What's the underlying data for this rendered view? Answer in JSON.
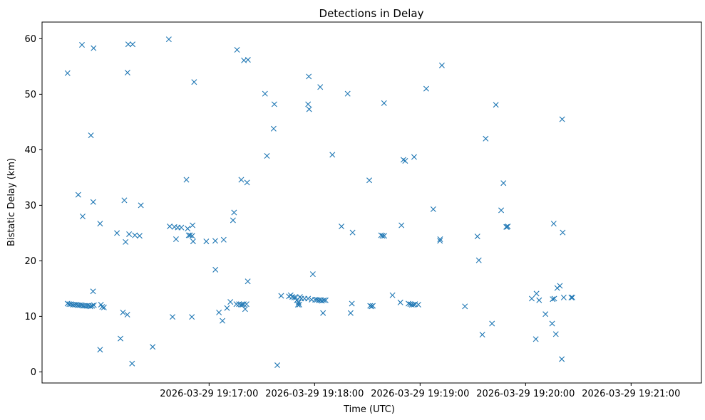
{
  "chart_data": {
    "type": "scatter",
    "title": "Detections in Delay",
    "xlabel": "Time (UTC)",
    "ylabel": "Bistatic Delay (km)",
    "x_unit": "seconds past 19:00:00 UTC, 2026-03-29",
    "xlim": [
      925,
      1300
    ],
    "ylim": [
      -2,
      63
    ],
    "x_ticks": [
      {
        "value": 1020,
        "label": "2026-03-29 19:17:00"
      },
      {
        "value": 1080,
        "label": "2026-03-29 19:18:00"
      },
      {
        "value": 1140,
        "label": "2026-03-29 19:19:00"
      },
      {
        "value": 1200,
        "label": "2026-03-29 19:20:00"
      },
      {
        "value": 1260,
        "label": "2026-03-29 19:21:00"
      }
    ],
    "y_ticks": [
      0,
      10,
      20,
      30,
      40,
      50,
      60
    ],
    "marker": "x",
    "color": "#1f77b4",
    "grid": false,
    "points": [
      [
        939.5,
        53.8
      ],
      [
        945.6,
        31.9
      ],
      [
        947.7,
        58.9
      ],
      [
        948.1,
        28.0
      ],
      [
        952.8,
        42.6
      ],
      [
        954.3,
        58.3
      ],
      [
        954.1,
        30.6
      ],
      [
        954.0,
        14.5
      ],
      [
        958.0,
        26.7
      ],
      [
        958.0,
        4.0
      ],
      [
        959.2,
        11.7
      ],
      [
        960.2,
        11.6
      ],
      [
        939.5,
        12.3
      ],
      [
        940.5,
        12.2
      ],
      [
        941.5,
        12.2
      ],
      [
        942.5,
        12.1
      ],
      [
        943.5,
        12.1
      ],
      [
        944.5,
        12.1
      ],
      [
        945.5,
        12.0
      ],
      [
        946.5,
        12.0
      ],
      [
        947.5,
        12.0
      ],
      [
        948.5,
        11.9
      ],
      [
        949.5,
        11.9
      ],
      [
        950.5,
        11.9
      ],
      [
        951.5,
        11.9
      ],
      [
        952.5,
        11.8
      ],
      [
        953.5,
        11.9
      ],
      [
        954.5,
        12.0
      ],
      [
        958.5,
        12.1
      ],
      [
        967.6,
        25.0
      ],
      [
        969.6,
        6.0
      ],
      [
        971.0,
        10.7
      ],
      [
        971.8,
        30.9
      ],
      [
        972.5,
        23.4
      ],
      [
        973.5,
        10.3
      ],
      [
        973.6,
        53.9
      ],
      [
        974.0,
        59.0
      ],
      [
        974.5,
        24.8
      ],
      [
        976.2,
        1.5
      ],
      [
        976.5,
        59.0
      ],
      [
        977.8,
        24.6
      ],
      [
        980.5,
        24.5
      ],
      [
        981.2,
        30.0
      ],
      [
        987.9,
        4.5
      ],
      [
        997.1,
        59.9
      ],
      [
        997.6,
        26.2
      ],
      [
        999.2,
        9.9
      ],
      [
        1000.3,
        26.1
      ],
      [
        1001.2,
        23.9
      ],
      [
        1002.2,
        26.0
      ],
      [
        1004.2,
        26.0
      ],
      [
        1007.1,
        34.6
      ],
      [
        1007.8,
        25.8
      ],
      [
        1008.4,
        24.6
      ],
      [
        1009.2,
        24.6
      ],
      [
        1010.2,
        9.9
      ],
      [
        1010.4,
        24.5
      ],
      [
        1010.6,
        26.4
      ],
      [
        1010.9,
        23.5
      ],
      [
        1011.5,
        52.2
      ],
      [
        1018.4,
        23.5
      ],
      [
        1023.6,
        18.4
      ],
      [
        1023.5,
        23.6
      ],
      [
        1025.6,
        10.7
      ],
      [
        1027.6,
        9.2
      ],
      [
        1028.3,
        23.8
      ],
      [
        1030.2,
        11.5
      ],
      [
        1032.1,
        12.6
      ],
      [
        1033.6,
        27.3
      ],
      [
        1034.2,
        28.7
      ],
      [
        1035.5,
        12.2
      ],
      [
        1035.9,
        58.0
      ],
      [
        1037.0,
        12.2
      ],
      [
        1038.3,
        34.6
      ],
      [
        1038.2,
        12.1
      ],
      [
        1039.0,
        12.1
      ],
      [
        1039.7,
        12.2
      ],
      [
        1039.8,
        56.1
      ],
      [
        1040.5,
        11.3
      ],
      [
        1041.3,
        12.2
      ],
      [
        1042.0,
        16.3
      ],
      [
        1042.1,
        56.2
      ],
      [
        1041.6,
        34.1
      ],
      [
        1051.8,
        50.1
      ],
      [
        1052.9,
        38.9
      ],
      [
        1057.1,
        48.2
      ],
      [
        1056.7,
        43.8
      ],
      [
        1058.8,
        1.2
      ],
      [
        1061.0,
        13.7
      ],
      [
        1065.4,
        13.6
      ],
      [
        1066.4,
        13.8
      ],
      [
        1067.3,
        13.5
      ],
      [
        1068.4,
        13.4
      ],
      [
        1069.3,
        13.4
      ],
      [
        1069.9,
        12.9
      ],
      [
        1070.5,
        12.1
      ],
      [
        1070.9,
        12.5
      ],
      [
        1071.3,
        12.1
      ],
      [
        1071.7,
        13.5
      ],
      [
        1072.4,
        13.2
      ],
      [
        1074.3,
        13.2
      ],
      [
        1076.3,
        48.2
      ],
      [
        1076.7,
        53.2
      ],
      [
        1076.9,
        47.3
      ],
      [
        1076.3,
        13.2
      ],
      [
        1078.3,
        13.0
      ],
      [
        1079.0,
        17.6
      ],
      [
        1080.3,
        13.0
      ],
      [
        1081.3,
        13.0
      ],
      [
        1082.3,
        12.9
      ],
      [
        1083.2,
        51.3
      ],
      [
        1083.3,
        12.9
      ],
      [
        1084.2,
        12.8
      ],
      [
        1084.8,
        10.6
      ],
      [
        1085.3,
        12.9
      ],
      [
        1086.3,
        12.9
      ],
      [
        1090.1,
        39.1
      ],
      [
        1095.3,
        26.2
      ],
      [
        1098.8,
        50.1
      ],
      [
        1100.5,
        10.6
      ],
      [
        1101.6,
        25.1
      ],
      [
        1101.2,
        12.3
      ],
      [
        1111.1,
        34.5
      ],
      [
        1111.6,
        11.9
      ],
      [
        1112.4,
        11.8
      ],
      [
        1113.1,
        11.9
      ],
      [
        1117.8,
        24.6
      ],
      [
        1118.6,
        24.5
      ],
      [
        1119.6,
        24.5
      ],
      [
        1119.5,
        48.4
      ],
      [
        1124.3,
        13.8
      ],
      [
        1128.8,
        12.5
      ],
      [
        1129.4,
        26.4
      ],
      [
        1130.5,
        38.2
      ],
      [
        1131.5,
        38.0
      ],
      [
        1133.4,
        12.3
      ],
      [
        1134.4,
        12.2
      ],
      [
        1135.3,
        12.1
      ],
      [
        1136.6,
        38.7
      ],
      [
        1136.3,
        12.1
      ],
      [
        1137.2,
        12.2
      ],
      [
        1139.0,
        12.1
      ],
      [
        1143.5,
        51.0
      ],
      [
        1147.5,
        29.3
      ],
      [
        1151.3,
        23.6
      ],
      [
        1151.4,
        23.9
      ],
      [
        1152.4,
        55.2
      ],
      [
        1165.5,
        11.8
      ],
      [
        1172.6,
        24.4
      ],
      [
        1173.4,
        20.1
      ],
      [
        1175.4,
        6.7
      ],
      [
        1177.3,
        42.0
      ],
      [
        1180.9,
        8.7
      ],
      [
        1183.1,
        48.1
      ],
      [
        1186.1,
        29.1
      ],
      [
        1187.4,
        34.0
      ],
      [
        1189.0,
        26.1
      ],
      [
        1189.4,
        26.1
      ],
      [
        1189.9,
        26.2
      ],
      [
        1203.5,
        13.2
      ],
      [
        1205.8,
        5.9
      ],
      [
        1206.2,
        14.1
      ],
      [
        1207.7,
        12.9
      ],
      [
        1211.3,
        10.4
      ],
      [
        1215.1,
        8.7
      ],
      [
        1215.4,
        13.1
      ],
      [
        1216.0,
        26.7
      ],
      [
        1216.3,
        13.2
      ],
      [
        1217.2,
        6.8
      ],
      [
        1218.0,
        15.1
      ],
      [
        1219.5,
        15.5
      ],
      [
        1220.6,
        2.3
      ],
      [
        1220.8,
        45.5
      ],
      [
        1221.1,
        25.1
      ],
      [
        1221.7,
        13.4
      ],
      [
        1226.0,
        13.4
      ],
      [
        1226.6,
        13.4
      ]
    ]
  }
}
